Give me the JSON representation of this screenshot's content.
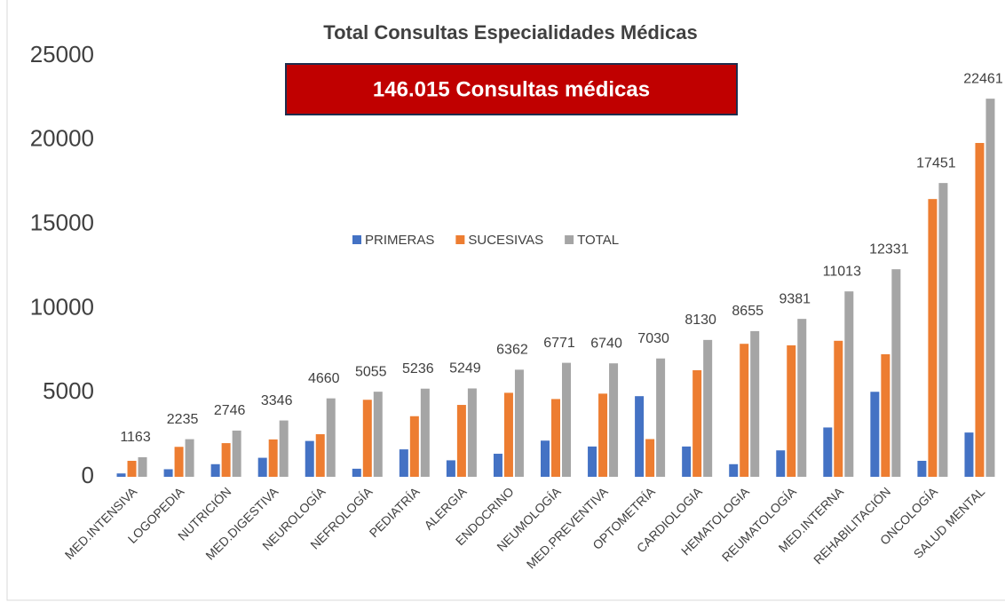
{
  "chart_data": {
    "type": "bar",
    "title": "Total Consultas Especialidades Médicas",
    "annotation": "146.015 Consultas médicas",
    "categories": [
      "MED.INTENSIVA",
      "LOGOPEDIA",
      "NUTRICIÓN",
      "MED.DIGESTIVA",
      "NEUROLOGÍA",
      "NEFROLOGÍA",
      "PEDIATRÍA",
      "ALERGIA",
      "ENDOCRINO",
      "NEUMOLOGÍA",
      "MED.PREVENTIVA",
      "OPTOMETRÍA",
      "CARDIOLOGIA",
      "HEMATOLOGIA",
      "REUMATOLOGÍA",
      "MED.INTERNA",
      "REHABILITACIÓN",
      "ONCOLOGÍA",
      "SALUD MENTAL"
    ],
    "series": [
      {
        "name": "PRIMERAS",
        "color": "#4472c4",
        "values": [
          200,
          450,
          750,
          1130,
          2130,
          480,
          1630,
          980,
          1370,
          2150,
          1800,
          4790,
          1800,
          750,
          1570,
          2930,
          5050,
          950,
          2630
        ]
      },
      {
        "name": "SUCESIVAS",
        "color": "#ed7d31",
        "values": [
          950,
          1780,
          2000,
          2220,
          2530,
          4575,
          3600,
          4270,
          4990,
          4620,
          4940,
          2240,
          6330,
          7900,
          7810,
          8080,
          7280,
          16500,
          19830
        ]
      },
      {
        "name": "TOTAL",
        "color": "#a5a5a5",
        "values": [
          1163,
          2235,
          2746,
          3346,
          4660,
          5055,
          5236,
          5249,
          6362,
          6771,
          6740,
          7030,
          8130,
          8655,
          9381,
          11013,
          12331,
          17451,
          22461
        ],
        "data_labels": true
      }
    ],
    "ylim": [
      0,
      25000
    ],
    "yticks": [
      0,
      5000,
      10000,
      15000,
      20000,
      25000
    ],
    "grid": false
  }
}
